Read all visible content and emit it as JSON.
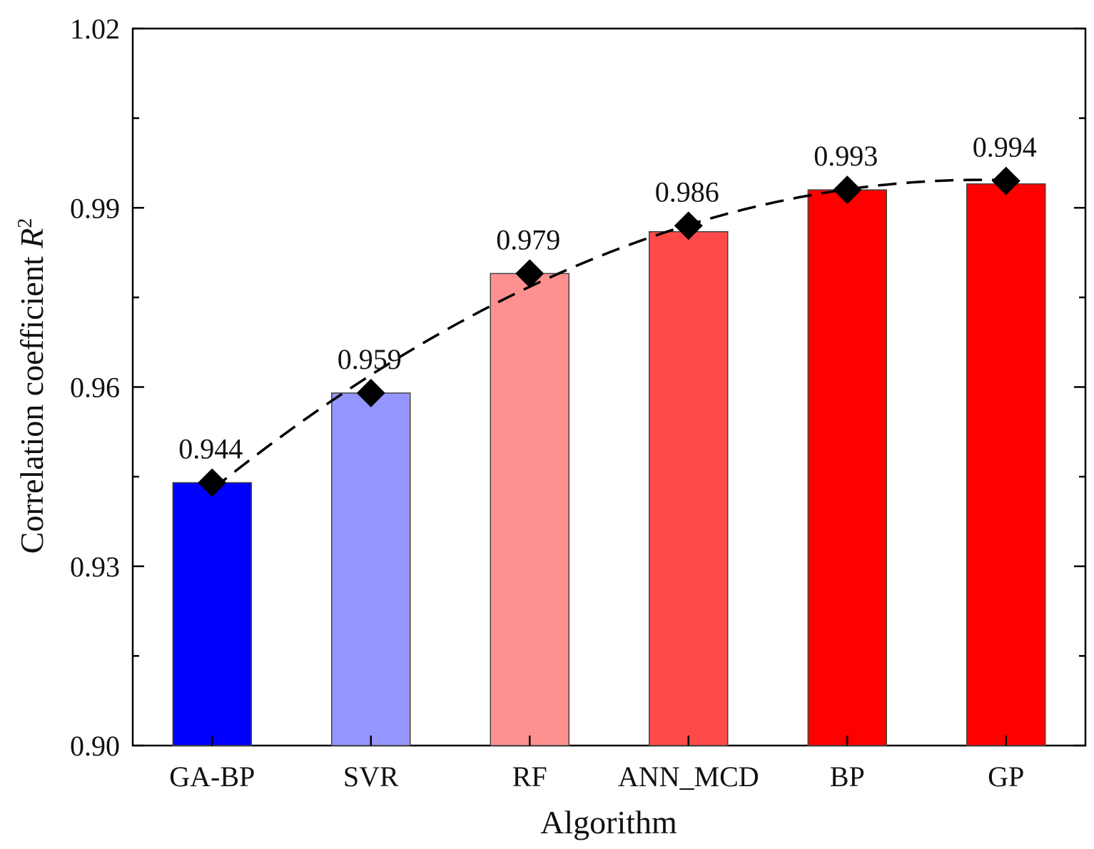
{
  "chart_data": {
    "type": "bar",
    "title": "",
    "xlabel": "Algorithm",
    "ylabel": "Correlation coefficient R²",
    "ylabel_parts": {
      "main": "Correlation coefficient ",
      "italic": "R",
      "sup": "2"
    },
    "ylim": [
      0.9,
      1.02
    ],
    "yticks": [
      0.9,
      0.93,
      0.96,
      0.99,
      1.02
    ],
    "ytick_labels": [
      "0.90",
      "0.93",
      "0.96",
      "0.99",
      "1.02"
    ],
    "yminor_step": 0.015,
    "grid": false,
    "categories": [
      "GA-BP",
      "SVR",
      "RF",
      "ANN_MCD",
      "BP",
      "GP"
    ],
    "values": [
      0.944,
      0.959,
      0.979,
      0.986,
      0.993,
      0.994
    ],
    "data_labels": [
      "0.944",
      "0.959",
      "0.979",
      "0.986",
      "0.993",
      "0.994"
    ],
    "bar_colors": [
      "#0000ff",
      "#9595ff",
      "#ff9090",
      "#ff4a4a",
      "#ff0000",
      "#ff0000"
    ],
    "markers": {
      "shape": "diamond",
      "color": "#000000",
      "values": [
        0.944,
        0.959,
        0.979,
        0.987,
        0.993,
        0.9945
      ]
    },
    "trend_line": {
      "style": "dashed",
      "color": "#000000",
      "fit": "quadratic"
    }
  }
}
